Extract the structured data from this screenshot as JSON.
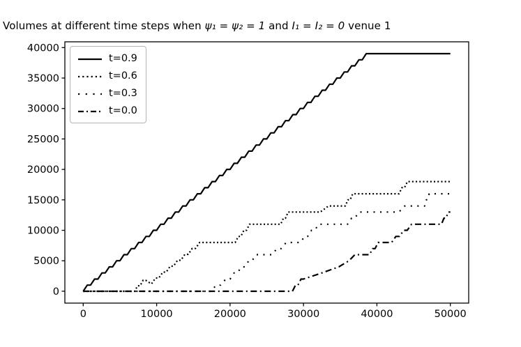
{
  "title": {
    "prefix": "Volumes at different time steps when ",
    "math1": "ψ₁ = ψ₂ = 1",
    "mid": " and ",
    "math2": "I₁ = I₂ = 0",
    "suffix": " venue 1"
  },
  "chart_data": {
    "type": "line",
    "title": "Volumes at different time steps when ψ₁ = ψ₂ = 1 and I₁ = I₂ = 0 venue 1",
    "xlabel": "",
    "ylabel": "",
    "xlim": [
      -2500,
      52500
    ],
    "ylim": [
      -1950,
      40950
    ],
    "x_ticks": [
      0,
      10000,
      20000,
      30000,
      40000,
      50000
    ],
    "y_ticks": [
      0,
      5000,
      10000,
      15000,
      20000,
      25000,
      30000,
      35000,
      40000
    ],
    "grid": false,
    "legend_position": "upper left",
    "line_color": "#000000",
    "stair_step": 1000,
    "series": [
      {
        "name": "t=0.9",
        "style": "solid",
        "points": [
          [
            0,
            0
          ],
          [
            39000,
            39000
          ],
          [
            50000,
            39000
          ]
        ]
      },
      {
        "name": "t=0.6",
        "style": "dotted",
        "points": [
          [
            0,
            0
          ],
          [
            7000,
            0
          ],
          [
            8500,
            1800
          ],
          [
            9300,
            1200
          ],
          [
            16300,
            8000
          ],
          [
            20700,
            8000
          ],
          [
            23000,
            11000
          ],
          [
            26900,
            11000
          ],
          [
            28200,
            13000
          ],
          [
            32300,
            13000
          ],
          [
            33400,
            14000
          ],
          [
            35700,
            14000
          ],
          [
            37000,
            16000
          ],
          [
            43000,
            16000
          ],
          [
            44500,
            18000
          ],
          [
            50000,
            18000
          ]
        ]
      },
      {
        "name": "t=0.3",
        "style": "sparse-dotted",
        "points": [
          [
            0,
            0
          ],
          [
            17400,
            0
          ],
          [
            20000,
            2000
          ],
          [
            24000,
            6000
          ],
          [
            25700,
            6000
          ],
          [
            28200,
            8000
          ],
          [
            29600,
            8000
          ],
          [
            32500,
            11000
          ],
          [
            36000,
            11000
          ],
          [
            38000,
            13000
          ],
          [
            43000,
            13000
          ],
          [
            43800,
            14000
          ],
          [
            46500,
            14000
          ],
          [
            47300,
            16000
          ],
          [
            50000,
            16000
          ]
        ]
      },
      {
        "name": "t=0.0",
        "style": "dash-dot",
        "points": [
          [
            0,
            0
          ],
          [
            28500,
            0
          ],
          [
            30000,
            2000
          ],
          [
            32500,
            3000
          ],
          [
            34800,
            4000
          ],
          [
            36200,
            5000
          ],
          [
            37000,
            6000
          ],
          [
            39000,
            6000
          ],
          [
            40500,
            8000
          ],
          [
            42000,
            8000
          ],
          [
            45200,
            11000
          ],
          [
            48800,
            11000
          ],
          [
            50000,
            13000
          ]
        ]
      }
    ]
  }
}
